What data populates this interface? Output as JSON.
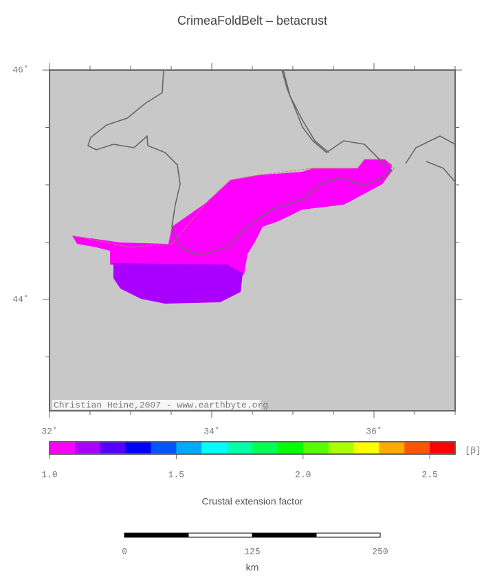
{
  "title": "CrimeaFoldBelt – betacrust",
  "map": {
    "y_labels": [
      "46˚",
      "44˚"
    ],
    "x_labels": [
      "32˚",
      "34˚",
      "36˚"
    ],
    "credit": "Christian Heine,2007 - www.earthbyte.org"
  },
  "colorbar": {
    "unit": "[β]",
    "labels": [
      "1.0",
      "1.5",
      "2.0",
      "2.5"
    ],
    "title": "Crustal extension factor",
    "colors": [
      "#ff00ff",
      "#aa00ff",
      "#5500ff",
      "#0000ff",
      "#0055ff",
      "#00aaff",
      "#00ffff",
      "#00ffaa",
      "#00ff55",
      "#00ff00",
      "#55ff00",
      "#aaff00",
      "#ffff00",
      "#ffaa00",
      "#ff5500",
      "#ff0000"
    ]
  },
  "scalebar": {
    "labels": [
      "0",
      "125",
      "250"
    ],
    "unit": "km"
  }
}
